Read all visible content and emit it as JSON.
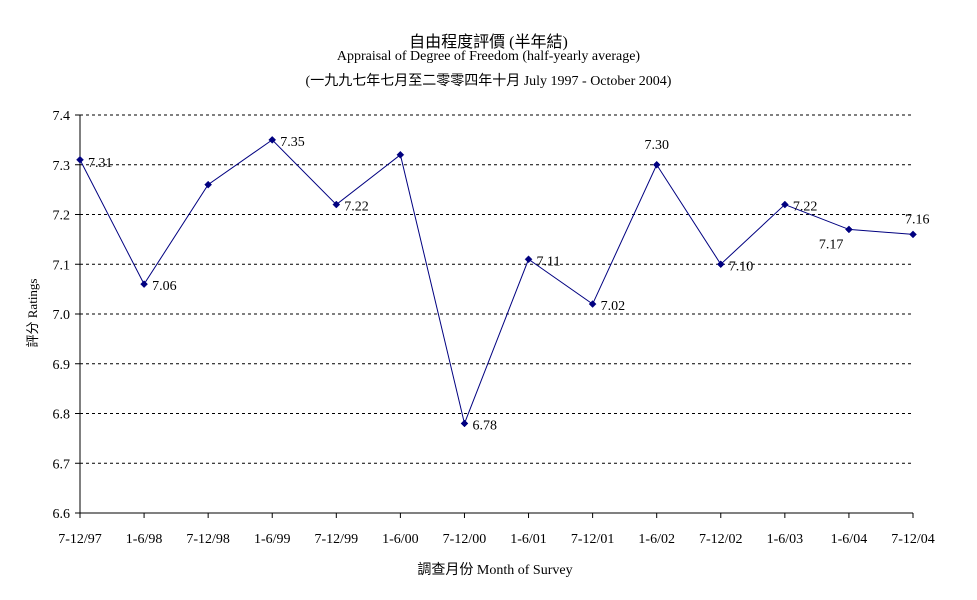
{
  "chart_data": {
    "type": "line",
    "title": "自由程度評價 (半年結)",
    "subtitle": "Appraisal of Degree of Freedom  (half-yearly average)",
    "subtitle2": "(一九九七年七月至二零零四年十月 July 1997 - October 2004)",
    "xlabel": "調查月份 Month of Survey",
    "ylabel": "評分 Ratings",
    "ylim": [
      6.6,
      7.4
    ],
    "yticks": [
      "6.6",
      "6.7",
      "6.8",
      "6.9",
      "7.0",
      "7.1",
      "7.2",
      "7.3",
      "7.4"
    ],
    "grid": true,
    "legend": false,
    "color": "#000080",
    "categories": [
      "7-12/97",
      "1-6/98",
      "7-12/98",
      "1-6/99",
      "7-12/99",
      "1-6/00",
      "7-12/00",
      "1-6/01",
      "7-12/01",
      "1-6/02",
      "7-12/02",
      "1-6/03",
      "1-6/04",
      "7-12/04"
    ],
    "values": [
      7.31,
      7.06,
      7.26,
      7.35,
      7.22,
      7.32,
      6.78,
      7.11,
      7.02,
      7.3,
      7.1,
      7.22,
      7.17,
      7.16
    ],
    "data_labels": [
      "7.31",
      "7.06",
      "",
      "7.35",
      "7.22",
      "",
      "6.78",
      "7.11",
      "7.02",
      "7.30",
      "7.10",
      "7.22",
      "7.17",
      "7.16"
    ]
  }
}
